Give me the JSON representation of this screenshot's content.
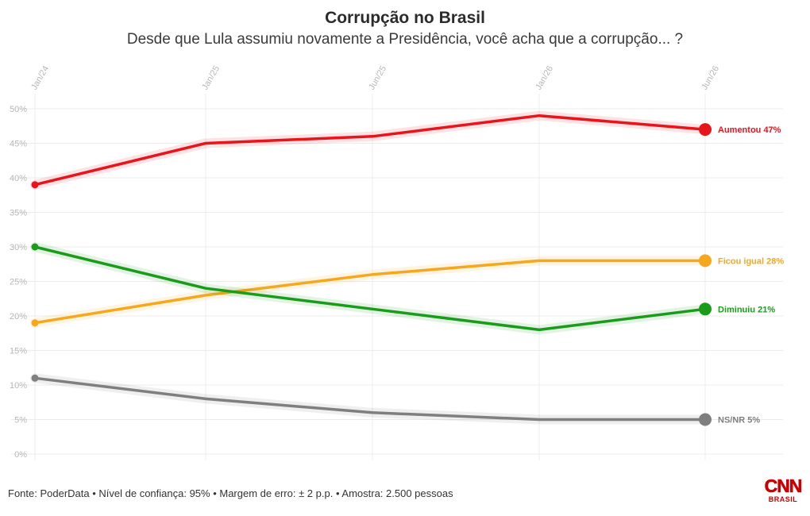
{
  "chart_data": {
    "type": "line",
    "title": "Corrupção no Brasil",
    "subtitle": "Desde que Lula assumiu novamente a Presidência, você acha que a corrupção... ?",
    "x": [
      "Jan/24",
      "Jan/25",
      "Jun/25",
      "Jan/26",
      "Jun/26"
    ],
    "xlabel": "",
    "ylabel": "",
    "ylim": [
      0,
      50
    ],
    "yticks": [
      "0%",
      "5%",
      "10%",
      "15%",
      "20%",
      "25%",
      "30%",
      "35%",
      "40%",
      "45%",
      "50%"
    ],
    "grid": true,
    "series": [
      {
        "name": "Aumentou",
        "label": "Aumentou 47%",
        "color": "#e8141b",
        "values": [
          39,
          45,
          46,
          49,
          47
        ]
      },
      {
        "name": "Ficou igual",
        "label": "Ficou igual 28%",
        "color": "#f6a81c",
        "values": [
          19,
          23,
          26,
          28,
          28
        ]
      },
      {
        "name": "Diminuiu",
        "label": "Diminuiu 21%",
        "color": "#1a9b1a",
        "values": [
          30,
          24,
          21,
          18,
          21
        ]
      },
      {
        "name": "NS/NR",
        "label": "NS/NR 5%",
        "color": "#7f7f7f",
        "values": [
          11,
          8,
          6,
          5,
          5
        ]
      }
    ]
  },
  "footer": {
    "source": "Fonte: PoderData • Nível de confiança: 95% • Margem de erro: ± 2 p.p. • Amostra: 2.500 pessoas"
  },
  "brand": {
    "name": "CNN",
    "sub": "BRASIL",
    "color": "#cc0000"
  }
}
